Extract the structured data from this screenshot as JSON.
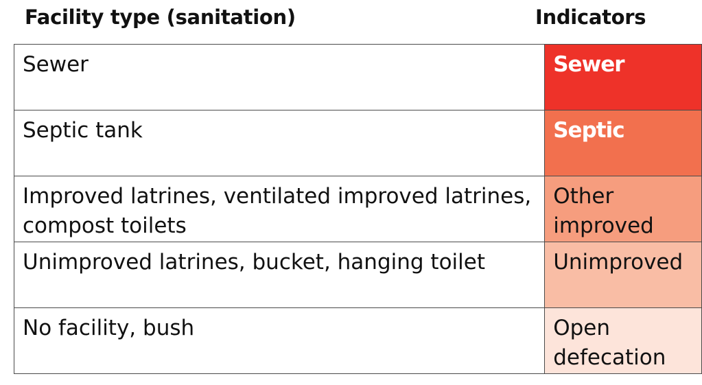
{
  "headers": {
    "facility": "Facility type (sanitation)",
    "indicators": "Indicators"
  },
  "rows": [
    {
      "facility": "Sewer",
      "indicator": "Sewer",
      "color": "#ee3229",
      "bold": true
    },
    {
      "facility": "Septic tank",
      "indicator": "Septic",
      "color": "#f2704e",
      "bold": true
    },
    {
      "facility": "Improved latrines, ventilated improved latrines, compost toilets",
      "indicator": "Other improved",
      "color": "#f69d7e",
      "bold": false
    },
    {
      "facility": "Unimproved latrines, bucket, hanging toilet",
      "indicator": "Unimproved",
      "color": "#f9bda5",
      "bold": false
    },
    {
      "facility": "No facility, bush",
      "indicator": "Open defecation",
      "color": "#fde4da",
      "bold": false
    }
  ]
}
